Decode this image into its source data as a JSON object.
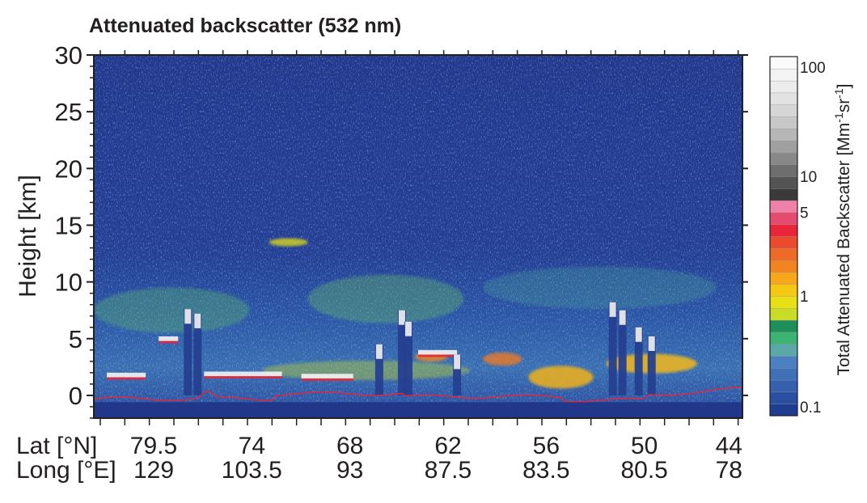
{
  "chart_data": {
    "type": "heatmap",
    "title": "Attenuated backscatter (532 nm)",
    "ylabel": "Height [km]",
    "ylim": [
      -2,
      30
    ],
    "yticks": [
      "30",
      "25",
      "20",
      "15",
      "10",
      "5",
      "0"
    ],
    "ytick_values": [
      30,
      25,
      20,
      15,
      10,
      5,
      0
    ],
    "x_rows": [
      {
        "label": "Lat [°N]",
        "ticks": [
          "79.5",
          "74",
          "68",
          "62",
          "56",
          "50",
          "44"
        ]
      },
      {
        "label": "Long [°E]",
        "ticks": [
          "129",
          "103.5",
          "93",
          "87.5",
          "83.5",
          "80.5",
          "78"
        ]
      }
    ],
    "colorbar": {
      "label": "Total Attenuated Backscatter [Mm⁻¹sr⁻¹]",
      "label_main": "Total Attenuated Backscatter [Mm",
      "label_sup1": "-1",
      "label_mid": "sr",
      "label_sup2": "-1",
      "label_end": "]",
      "scale": "log",
      "range": [
        0.1,
        100
      ],
      "tick_labels": [
        "100",
        "10",
        "5",
        "1",
        "0.1"
      ],
      "tick_values": [
        100,
        10,
        5,
        1,
        0.1
      ],
      "colors": [
        "#1f3d91",
        "#2a4fa0",
        "#3560ad",
        "#4070b8",
        "#4a7fc2",
        "#5aa8a8",
        "#3cb371",
        "#1f8f5a",
        "#c8dc28",
        "#e6e014",
        "#f5c814",
        "#f7a81a",
        "#f2831f",
        "#ee6a27",
        "#ec4a2c",
        "#e8253a",
        "#e64a6e",
        "#ef80a8",
        "#3a3a3a",
        "#545454",
        "#6e6e6e",
        "#888888",
        "#a0a0a0",
        "#b6b6b6",
        "#c8c8c8",
        "#d6d6d6",
        "#e2e2e2",
        "#ececec",
        "#f4f4f4",
        "#fafafa"
      ]
    }
  }
}
